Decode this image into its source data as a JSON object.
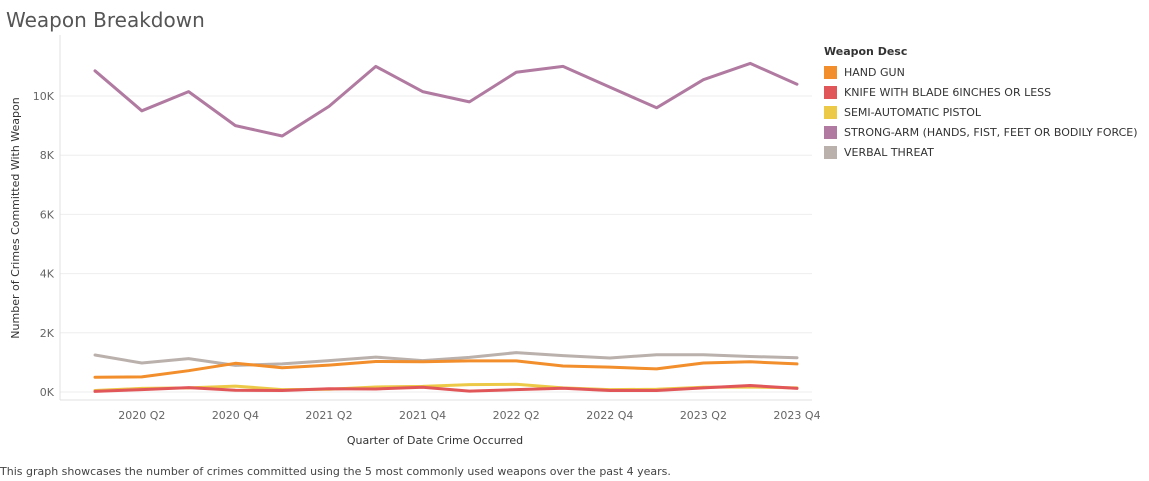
{
  "title": "Weapon Breakdown",
  "caption": "This graph showcases the number of crimes committed using the 5 most commonly used weapons over the past 4 years.",
  "chart_data": {
    "type": "line",
    "xlabel": "Quarter of Date Crime Occurred",
    "ylabel": "Number of Crimes Committed With Weapon",
    "x": [
      "2020 Q1",
      "2020 Q2",
      "2020 Q3",
      "2020 Q4",
      "2021 Q1",
      "2021 Q2",
      "2021 Q3",
      "2021 Q4",
      "2022 Q1",
      "2022 Q2",
      "2022 Q3",
      "2022 Q4",
      "2023 Q1",
      "2023 Q2",
      "2023 Q3",
      "2023 Q4"
    ],
    "x_tick_labels": [
      "2020 Q2",
      "2020 Q4",
      "2021 Q2",
      "2021 Q4",
      "2022 Q2",
      "2022 Q4",
      "2023 Q2",
      "2023 Q4"
    ],
    "y_ticks": [
      0,
      2000,
      4000,
      6000,
      8000,
      10000
    ],
    "y_tick_labels": [
      "0K",
      "2K",
      "4K",
      "6K",
      "8K",
      "10K"
    ],
    "ylim": [
      0,
      11500
    ],
    "grid": true,
    "legend_title": "Weapon Desc",
    "legend_position": "right",
    "series": [
      {
        "name": "HAND GUN",
        "color": "#f28e2b",
        "values": [
          500,
          510,
          720,
          970,
          820,
          910,
          1030,
          1020,
          1050,
          1050,
          880,
          840,
          780,
          980,
          1020,
          950
        ]
      },
      {
        "name": "KNIFE WITH BLADE 6INCHES OR LESS",
        "color": "#e15759",
        "values": [
          20,
          80,
          150,
          60,
          50,
          110,
          100,
          160,
          30,
          80,
          130,
          50,
          50,
          140,
          220,
          120
        ]
      },
      {
        "name": "SEMI-AUTOMATIC PISTOL",
        "color": "#edc948",
        "values": [
          50,
          120,
          140,
          200,
          80,
          90,
          170,
          190,
          250,
          260,
          140,
          80,
          90,
          160,
          170,
          140
        ]
      },
      {
        "name": "STRONG-ARM (HANDS, FIST, FEET OR BODILY FORCE)",
        "color": "#b07aa1",
        "values": [
          10850,
          9500,
          10150,
          9000,
          8650,
          9650,
          11000,
          10150,
          9800,
          10800,
          11000,
          10300,
          9600,
          10550,
          11100,
          10400
        ]
      },
      {
        "name": "VERBAL THREAT",
        "color": "#bab0ac",
        "values": [
          1250,
          980,
          1130,
          900,
          950,
          1060,
          1180,
          1060,
          1170,
          1330,
          1230,
          1150,
          1260,
          1260,
          1200,
          1160
        ]
      }
    ]
  }
}
